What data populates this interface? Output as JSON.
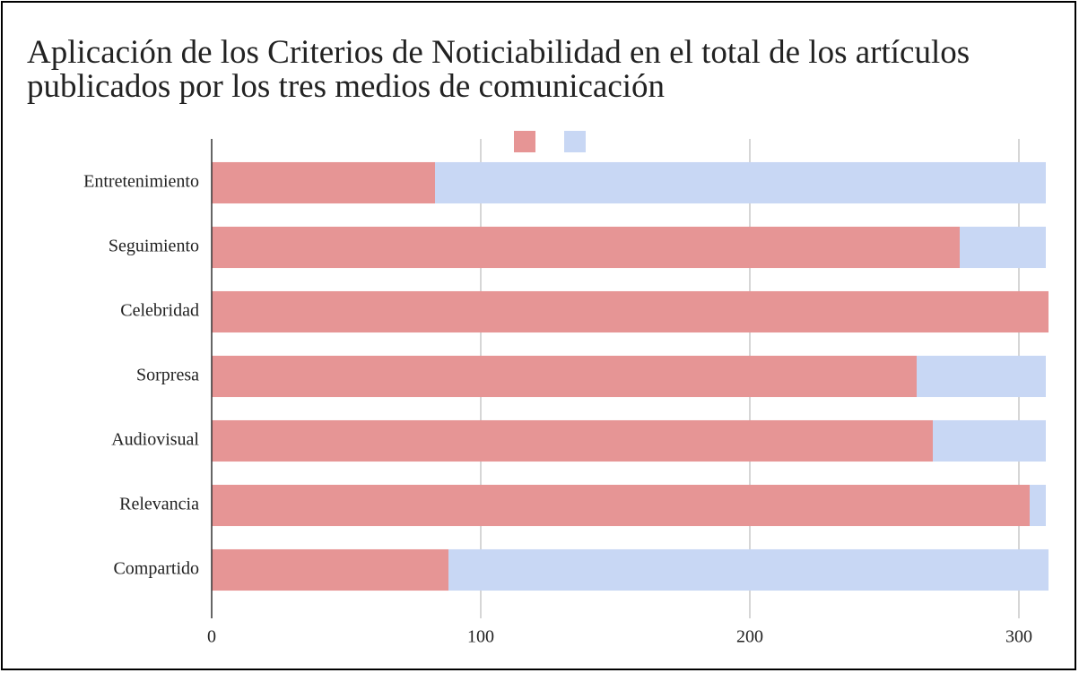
{
  "chart_data": {
    "type": "stacked-bar-horizontal",
    "title": "Aplicación de los Criterios de Noticiabilidad en el total de los artículos publicados por los tres medios de comunicación",
    "categories": [
      "Entretenimiento",
      "Seguimiento",
      "Celebridad",
      "Sorpresa",
      "Audiovisual",
      "Relevancia",
      "Compartido"
    ],
    "series": [
      {
        "color": "#e69595",
        "values": [
          83,
          278,
          311,
          262,
          268,
          304,
          88
        ]
      },
      {
        "color": "#c8d7f4",
        "values": [
          227,
          32,
          0,
          48,
          42,
          6,
          223
        ]
      }
    ],
    "xlim": [
      0,
      311
    ],
    "xticks": [
      0,
      100,
      200,
      300
    ],
    "grid": true
  }
}
